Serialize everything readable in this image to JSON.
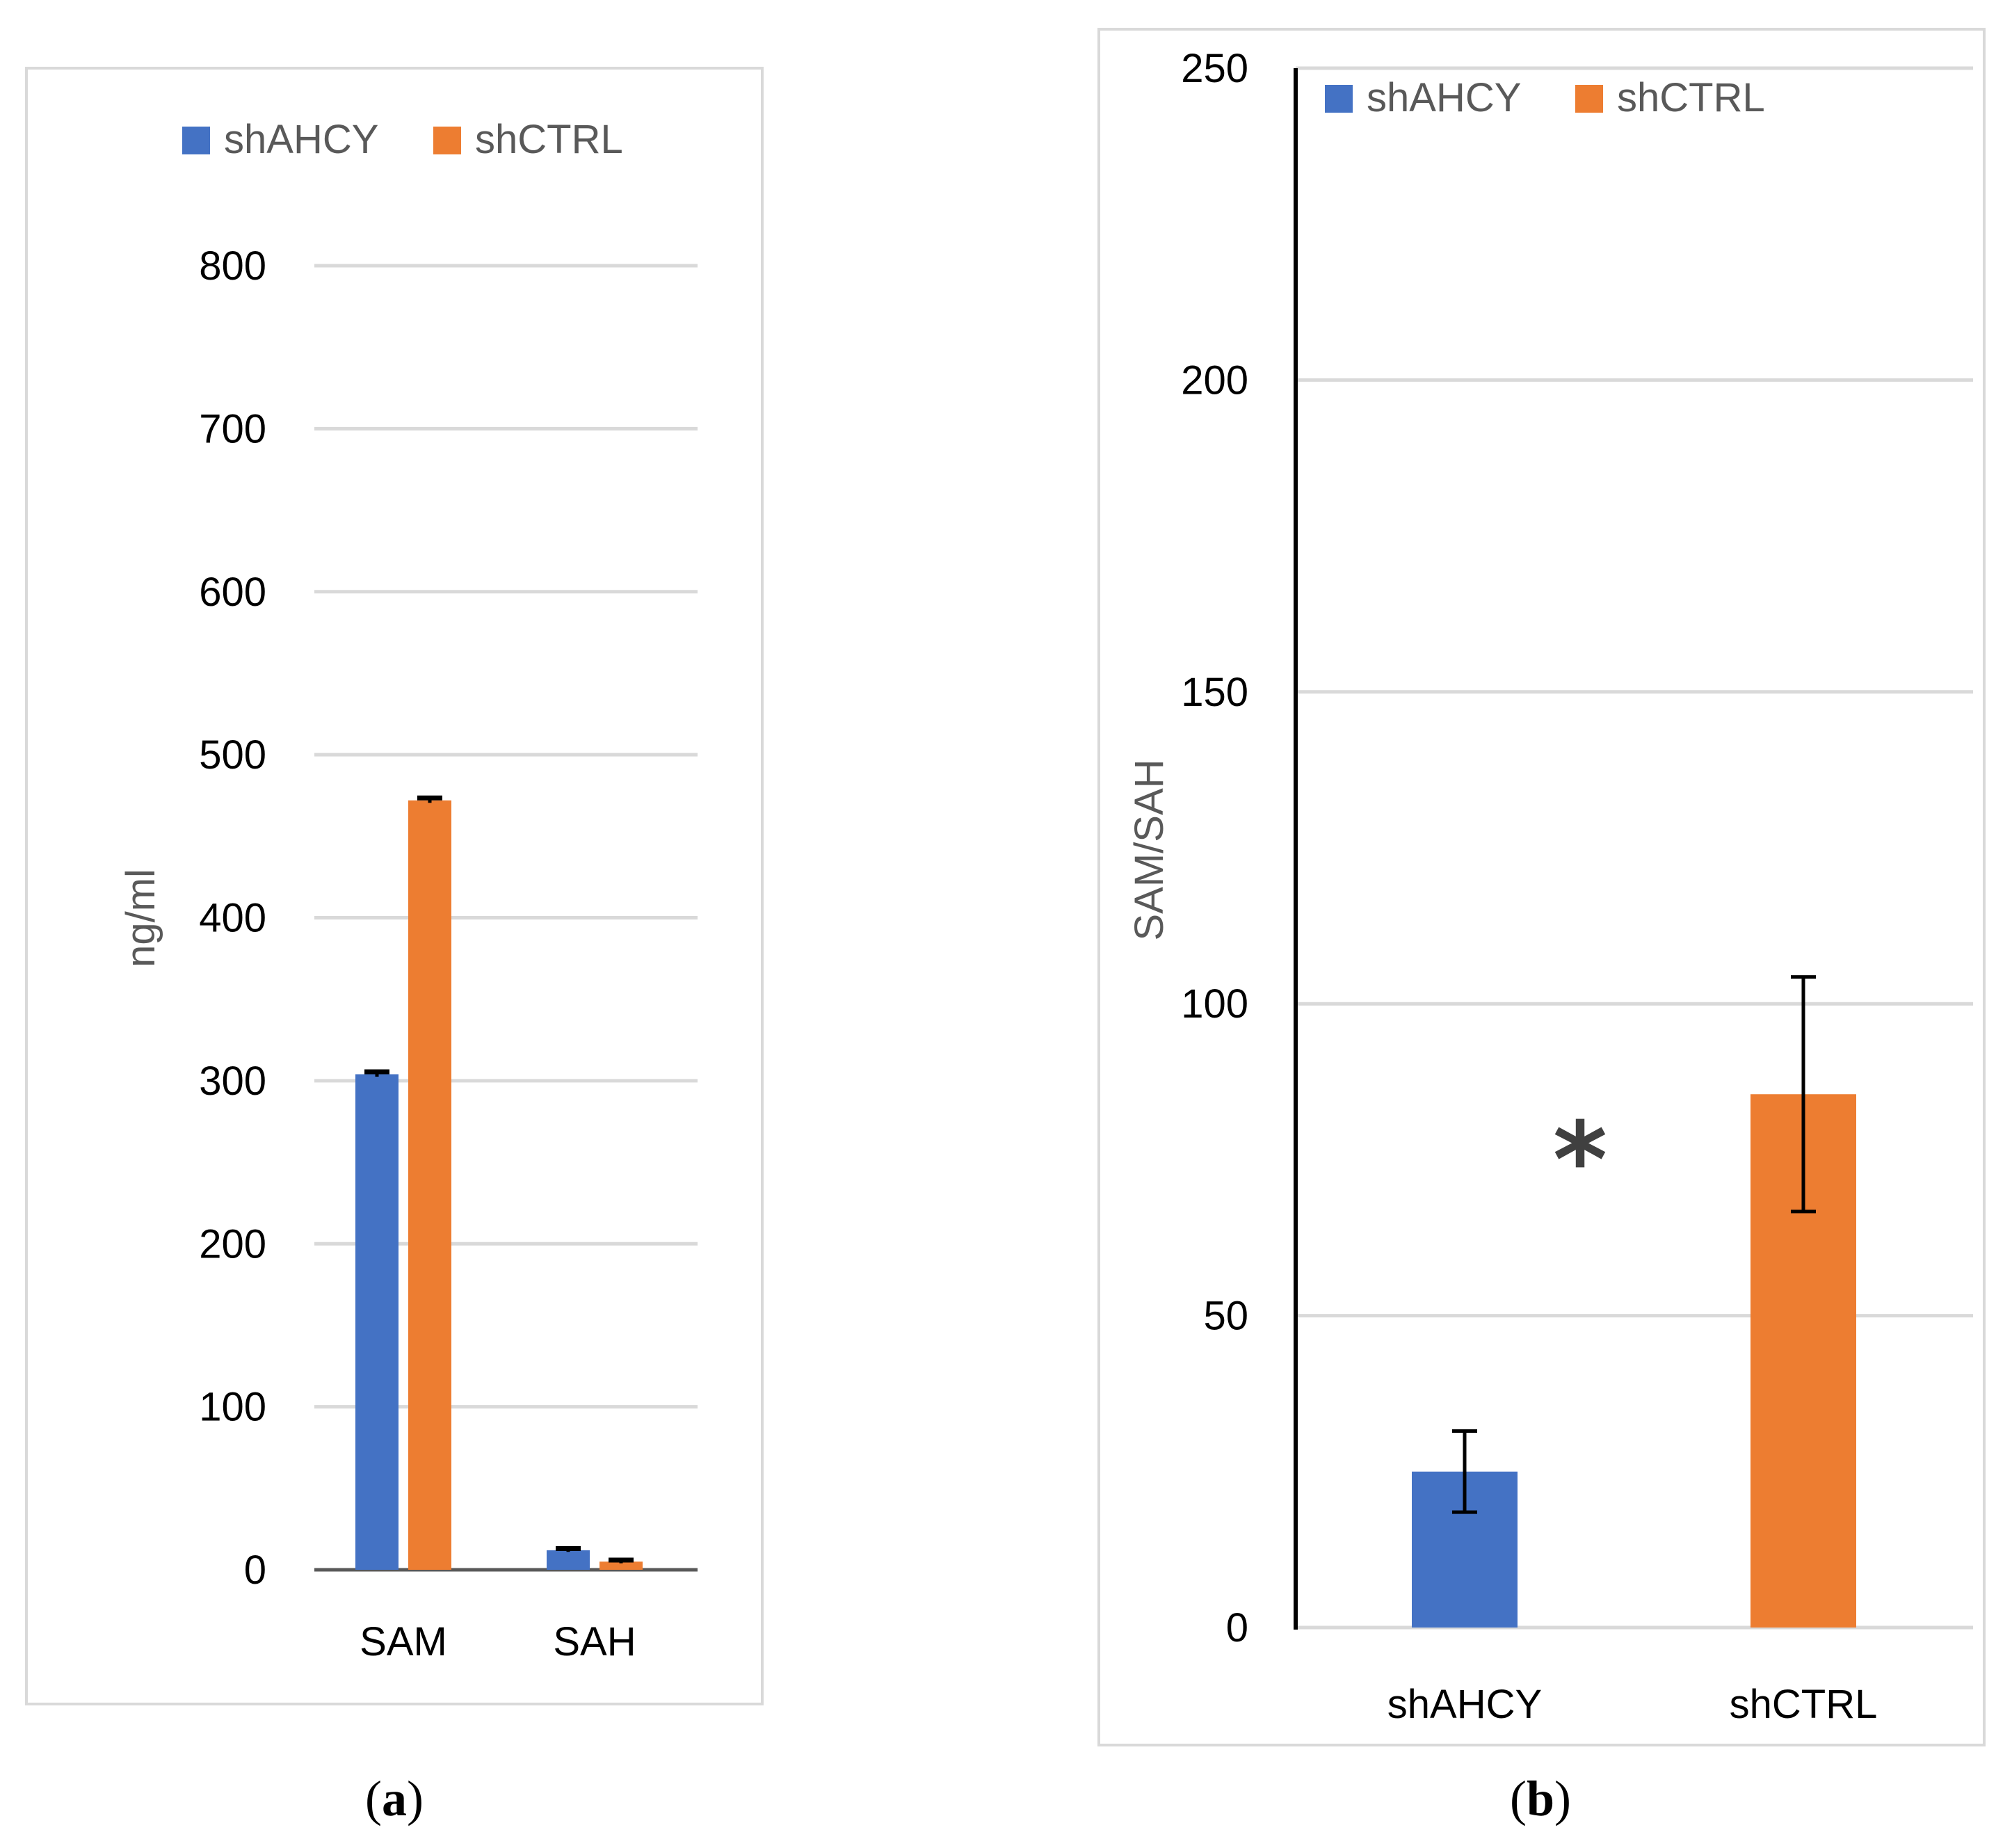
{
  "chart_data": [
    {
      "panel": "a",
      "type": "bar",
      "categories": [
        "SAM",
        "SAH"
      ],
      "series": [
        {
          "name": "shAHCY",
          "color": "#4472C4",
          "values": [
            304,
            12
          ],
          "errors": [
            1.5,
            1
          ]
        },
        {
          "name": "shCTRL",
          "color": "#ED7D31",
          "values": [
            472,
            5
          ],
          "errors": [
            1.5,
            1
          ]
        }
      ],
      "title": "",
      "xlabel": "",
      "ylabel": "ng/ml",
      "ylim": [
        0,
        800
      ],
      "yticks": [
        0,
        100,
        200,
        300,
        400,
        500,
        600,
        700,
        800
      ],
      "grid": true,
      "legend_position": "top"
    },
    {
      "panel": "b",
      "type": "bar",
      "categories": [
        "shAHCY",
        "shCTRL"
      ],
      "series": [
        {
          "name": "shAHCY",
          "color": "#4472C4",
          "values": [
            25,
            null
          ],
          "errors": [
            6.5,
            null
          ]
        },
        {
          "name": "shCTRL",
          "color": "#ED7D31",
          "values": [
            null,
            85.5
          ],
          "errors": [
            null,
            18.8
          ]
        }
      ],
      "title": "",
      "xlabel": "",
      "ylabel": "SAM/SAH",
      "ylim": [
        0,
        250
      ],
      "yticks": [
        0,
        50,
        100,
        150,
        200,
        250
      ],
      "grid": true,
      "legend_position": "top",
      "annotation": "*"
    }
  ],
  "panel_labels": {
    "a": {
      "open": "(",
      "letter": "a",
      "close": ")"
    },
    "b": {
      "open": "(",
      "letter": "b",
      "close": ")"
    }
  }
}
